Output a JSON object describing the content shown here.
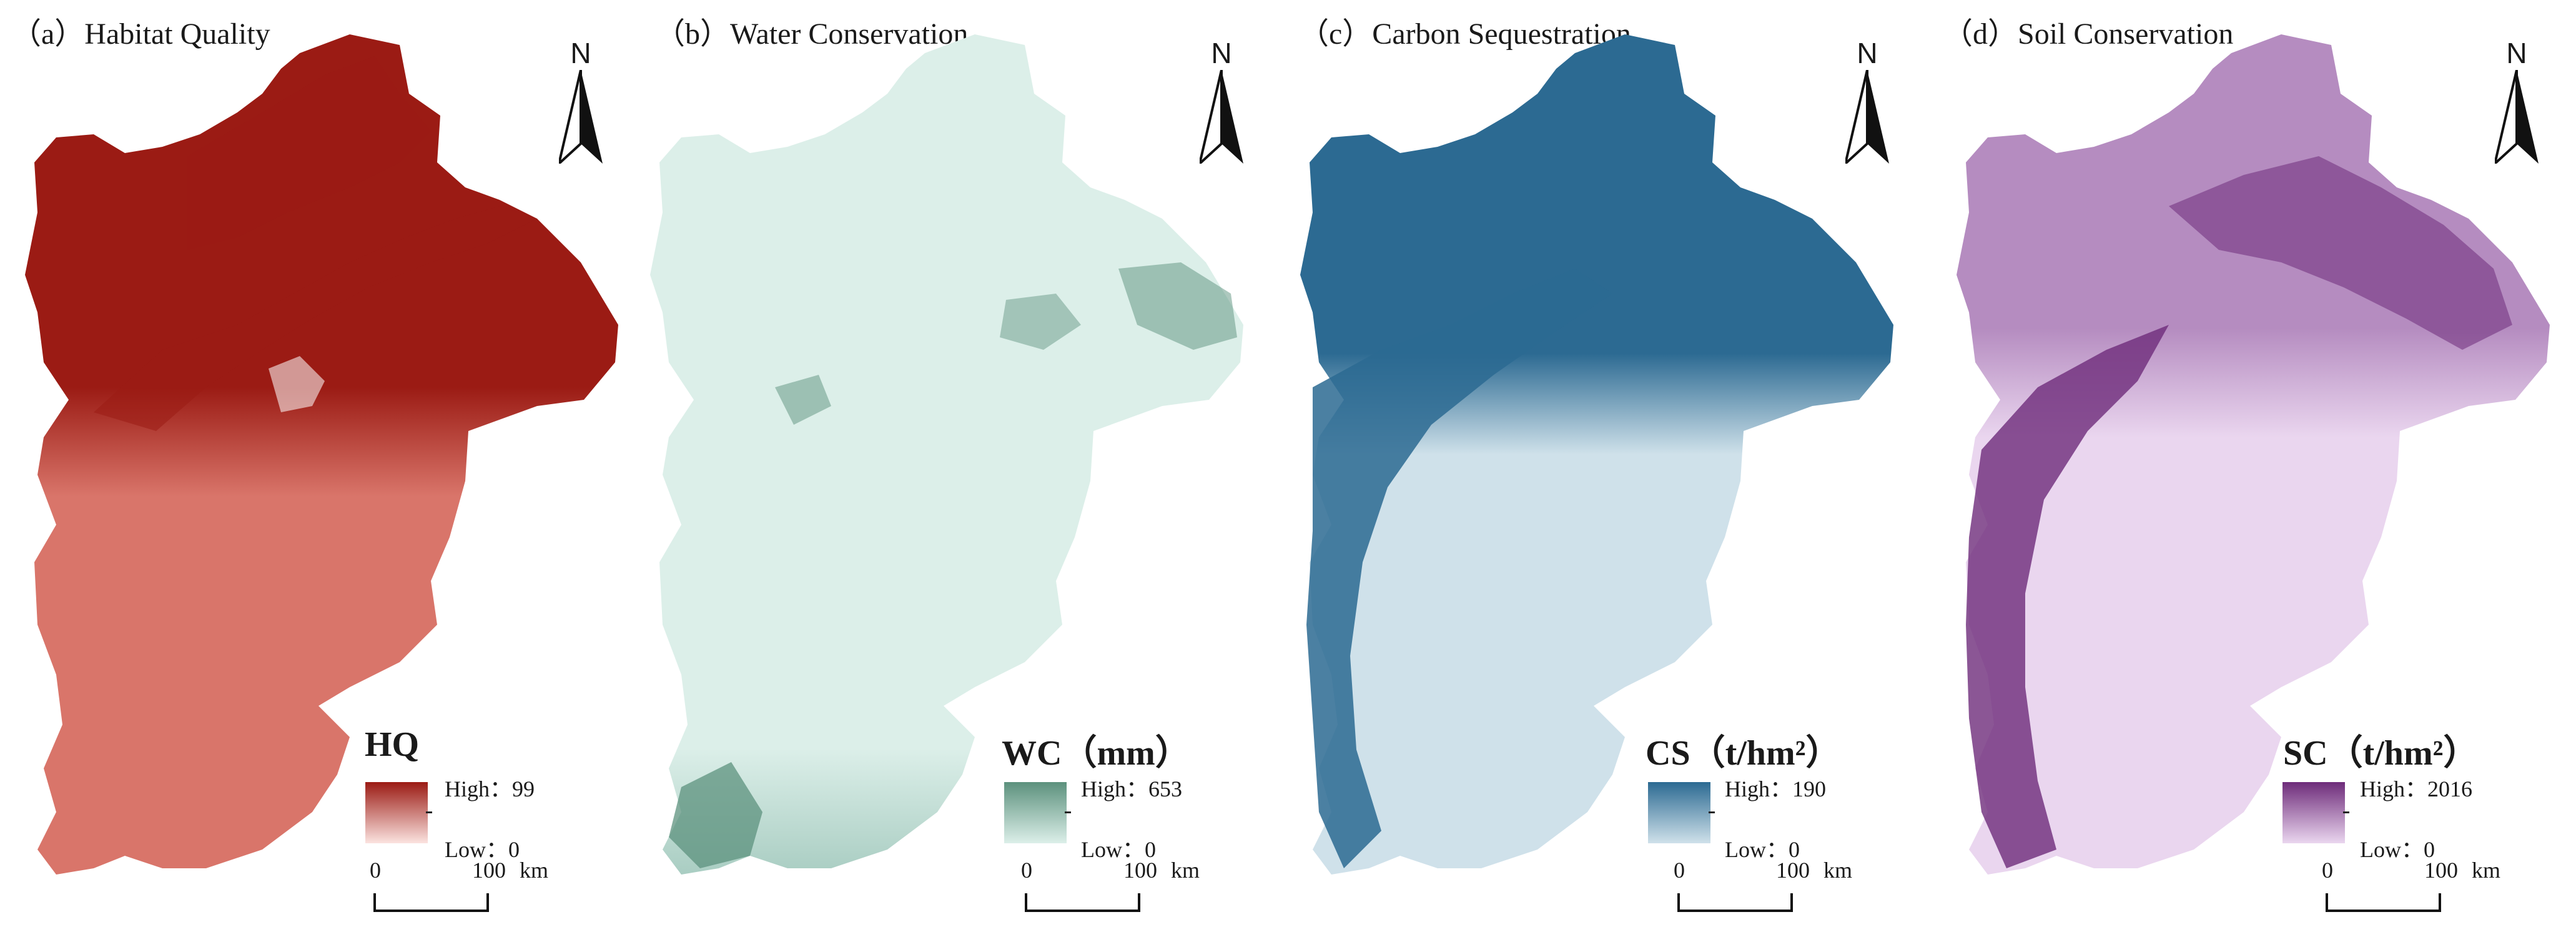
{
  "panels": [
    {
      "title": "（a）Habitat Quality",
      "legend_title": "HQ",
      "high_label": "High：99",
      "low_label": "Low：0",
      "colors": {
        "high": "#9b1b14",
        "mid": "#d9756a",
        "low": "#fbe3e0"
      }
    },
    {
      "title": "（b）Water Conservation",
      "legend_title": "WC（mm）",
      "high_label": "High：653",
      "low_label": "Low：0",
      "colors": {
        "high": "#5c917d",
        "mid": "#a9cdc2",
        "low": "#dcefe9"
      }
    },
    {
      "title": "（c）Carbon Sequestration",
      "legend_title": "CS（t/hm²）",
      "high_label": "High：190",
      "low_label": "Low：0",
      "colors": {
        "high": "#2c6a92",
        "mid": "#86b3cc",
        "low": "#cfe1ea"
      }
    },
    {
      "title": "（d）Soil Conservation",
      "legend_title": "SC（t/hm²）",
      "high_label": "High：2016",
      "low_label": "Low：0",
      "colors": {
        "high": "#6e2c7a",
        "mid": "#b58cc0",
        "low": "#ead6ef"
      }
    }
  ],
  "north_label": "N",
  "scale": {
    "zero": "0",
    "end": "100",
    "unit": "km"
  }
}
